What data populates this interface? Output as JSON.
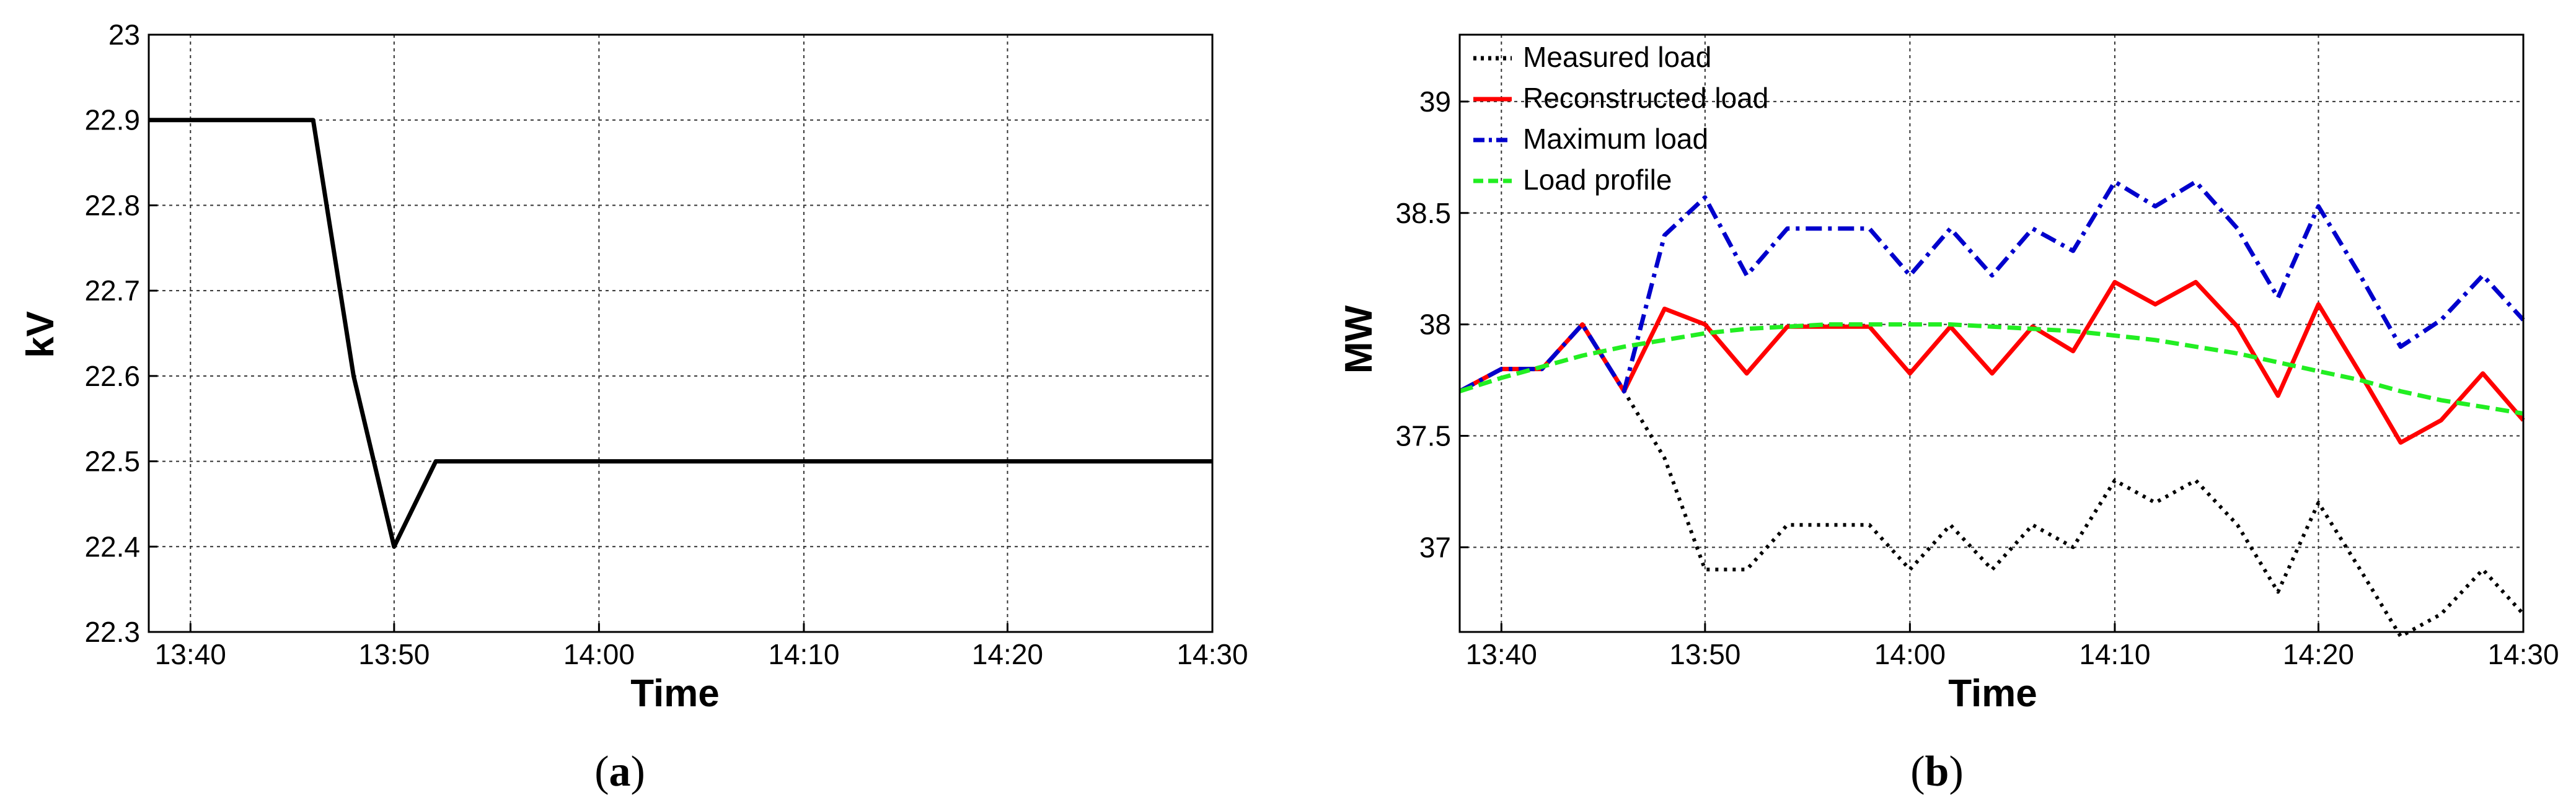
{
  "colors": {
    "voltage": "#000000",
    "measured": "#000000",
    "reconstructed": "#ff0000",
    "maximum": "#0000cc",
    "profile": "#22ee22",
    "grid": "#333333",
    "axis": "#000000"
  },
  "chart_data": [
    {
      "type": "line",
      "caption_open": "(",
      "caption_letter": "a",
      "caption_close": ")",
      "xlabel": "Time",
      "ylabel": "kV",
      "xlim": [
        13.633,
        14.5
      ],
      "ylim": [
        22.3,
        23.0
      ],
      "grid": true,
      "x_ticks": [
        {
          "value": 13.667,
          "label": "13:40"
        },
        {
          "value": 13.833,
          "label": "13:50"
        },
        {
          "value": 14.0,
          "label": "14:00"
        },
        {
          "value": 14.167,
          "label": "14:10"
        },
        {
          "value": 14.333,
          "label": "14:20"
        },
        {
          "value": 14.5,
          "label": "14:30"
        }
      ],
      "y_ticks": [
        {
          "value": 22.3,
          "label": "22.3"
        },
        {
          "value": 22.4,
          "label": "22.4"
        },
        {
          "value": 22.5,
          "label": "22.5"
        },
        {
          "value": 22.6,
          "label": "22.6"
        },
        {
          "value": 22.7,
          "label": "22.7"
        },
        {
          "value": 22.8,
          "label": "22.8"
        },
        {
          "value": 22.9,
          "label": "22.9"
        },
        {
          "value": 23.0,
          "label": "23"
        }
      ],
      "series": [
        {
          "key": "voltage",
          "style": "solid",
          "x": [
            13.633,
            13.767,
            13.8,
            13.833,
            13.867,
            14.5
          ],
          "y": [
            22.9,
            22.9,
            22.6,
            22.4,
            22.5,
            22.5
          ]
        }
      ]
    },
    {
      "type": "line",
      "caption_open": "(",
      "caption_letter": "b",
      "caption_close": ")",
      "xlabel": "Time",
      "ylabel": "MW",
      "xlim": [
        13.633,
        14.5
      ],
      "ylim": [
        36.62,
        39.3
      ],
      "grid": true,
      "legend_position": "top-left",
      "x_ticks": [
        {
          "value": 13.667,
          "label": "13:40"
        },
        {
          "value": 13.833,
          "label": "13:50"
        },
        {
          "value": 14.0,
          "label": "14:00"
        },
        {
          "value": 14.167,
          "label": "14:10"
        },
        {
          "value": 14.333,
          "label": "14:20"
        },
        {
          "value": 14.5,
          "label": "14:30"
        }
      ],
      "y_ticks": [
        {
          "value": 37,
          "label": "37"
        },
        {
          "value": 37.5,
          "label": "37.5"
        },
        {
          "value": 38,
          "label": "38"
        },
        {
          "value": 38.5,
          "label": "38.5"
        },
        {
          "value": 39,
          "label": "39"
        }
      ],
      "x": [
        13.633,
        13.667,
        13.7,
        13.733,
        13.767,
        13.8,
        13.833,
        13.867,
        13.9,
        13.933,
        13.967,
        14.0,
        14.033,
        14.067,
        14.1,
        14.133,
        14.167,
        14.2,
        14.233,
        14.267,
        14.3,
        14.333,
        14.367,
        14.4,
        14.433,
        14.467,
        14.5
      ],
      "series": [
        {
          "key": "measured",
          "name": "Measured load",
          "style": "dotted",
          "y": [
            37.7,
            37.8,
            37.8,
            38.0,
            37.7,
            37.4,
            36.9,
            36.9,
            37.1,
            37.1,
            37.1,
            36.9,
            37.1,
            36.9,
            37.1,
            37.0,
            37.3,
            37.2,
            37.3,
            37.1,
            36.8,
            37.2,
            36.9,
            36.6,
            36.7,
            36.9,
            36.7
          ]
        },
        {
          "key": "reconstructed",
          "name": "Reconstructed load",
          "style": "solid",
          "y": [
            37.7,
            37.8,
            37.8,
            38.0,
            37.7,
            38.07,
            38.0,
            37.78,
            37.99,
            37.99,
            37.99,
            37.78,
            37.99,
            37.78,
            37.99,
            37.88,
            38.19,
            38.09,
            38.19,
            37.99,
            37.68,
            38.09,
            37.78,
            37.47,
            37.57,
            37.78,
            37.57
          ]
        },
        {
          "key": "maximum",
          "name": "Maximum load",
          "style": "dashdot",
          "y": [
            37.7,
            37.8,
            37.8,
            38.0,
            37.7,
            38.4,
            38.57,
            38.22,
            38.43,
            38.43,
            38.43,
            38.22,
            38.43,
            38.22,
            38.43,
            38.33,
            38.64,
            38.53,
            38.64,
            38.43,
            38.12,
            38.53,
            38.22,
            37.9,
            38.02,
            38.22,
            38.02
          ]
        },
        {
          "key": "profile",
          "name": "Load profile",
          "style": "dashed",
          "y": [
            37.7,
            37.76,
            37.81,
            37.86,
            37.9,
            37.93,
            37.96,
            37.98,
            37.99,
            38.0,
            38.0,
            38.0,
            38.0,
            37.99,
            37.98,
            37.97,
            37.95,
            37.93,
            37.9,
            37.87,
            37.83,
            37.79,
            37.75,
            37.7,
            37.66,
            37.63,
            37.6
          ]
        }
      ]
    }
  ]
}
